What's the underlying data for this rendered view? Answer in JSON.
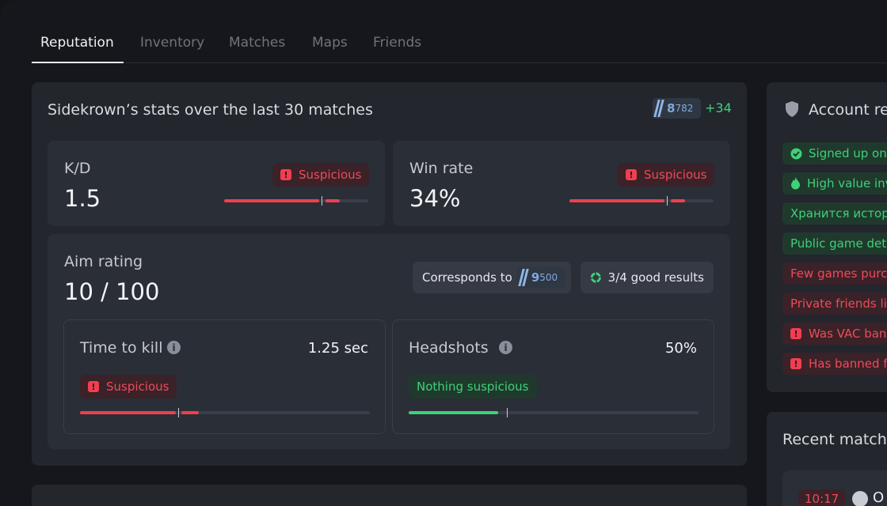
{
  "tabs": [
    {
      "label": "Reputation",
      "active": true
    },
    {
      "label": "Inventory",
      "active": false
    },
    {
      "label": "Matches",
      "active": false
    },
    {
      "label": "Maps",
      "active": false
    },
    {
      "label": "Friends",
      "active": false
    }
  ],
  "stats": {
    "title": "Sidekrown’s stats over the last 30 matches",
    "rank_big": "8",
    "rank_small": "782",
    "rank_delta": "+34",
    "kd": {
      "label": "K/D",
      "value": "1.5",
      "badge": "Suspicious",
      "fill": 0.66,
      "extra_fill": 0.1
    },
    "winrate": {
      "label": "Win rate",
      "value": "34%",
      "badge": "Suspicious",
      "fill": 0.66,
      "extra_fill": 0.1
    },
    "aim": {
      "label": "Aim rating",
      "value": "10 / 100",
      "corresponds_label": "Corresponds to",
      "corr_rank_big": "9",
      "corr_rank_small": "500",
      "good_results": "3/4 good results",
      "ttk": {
        "label": "Time to kill",
        "value": "1.25 sec",
        "badge": "Suspicious",
        "fill": 0.33,
        "extra_fill": 0.06
      },
      "headshots": {
        "label": "Headshots",
        "value": "50%",
        "badge": "Nothing suspicious",
        "fill": 0.31
      }
    }
  },
  "account": {
    "title": "Account re",
    "items": [
      {
        "text": "Signed up on S",
        "tone": "green",
        "icon": "check-icon"
      },
      {
        "text": "High value inv",
        "tone": "green",
        "icon": "flame-icon"
      },
      {
        "text": "Хранится истори",
        "tone": "green",
        "icon": ""
      },
      {
        "text": "Public game deta",
        "tone": "green",
        "icon": ""
      },
      {
        "text": "Few games purch",
        "tone": "red",
        "icon": ""
      },
      {
        "text": "Private friends list",
        "tone": "red",
        "icon": ""
      },
      {
        "text": "Was VAC bann",
        "tone": "red",
        "icon": "alert-icon"
      },
      {
        "text": "Has banned fr",
        "tone": "red",
        "icon": "alert-icon"
      }
    ]
  },
  "recent": {
    "title": "Recent match",
    "time": "10:17",
    "text": "O"
  },
  "colors": {
    "accent_red": "#ef3f50",
    "accent_green": "#3fd07a",
    "rank_blue": "#7fa9dc"
  }
}
